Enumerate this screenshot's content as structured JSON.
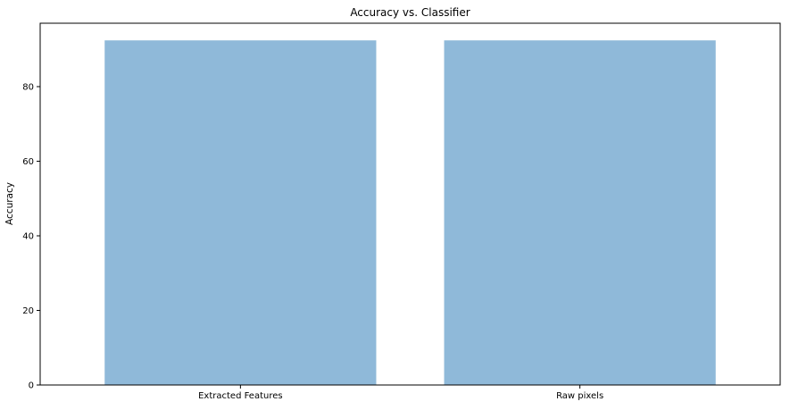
{
  "chart_data": {
    "type": "bar",
    "title": "Accuracy vs. Classifier",
    "xlabel": "",
    "ylabel": "Accuracy",
    "categories": [
      "Extracted Features",
      "Raw pixels"
    ],
    "values": [
      92.4,
      92.4
    ],
    "ylim": [
      0,
      97
    ],
    "yticks": [
      0,
      20,
      40,
      60,
      80
    ],
    "bar_color": "#8fb9d9",
    "grid": false,
    "legend": "none"
  }
}
